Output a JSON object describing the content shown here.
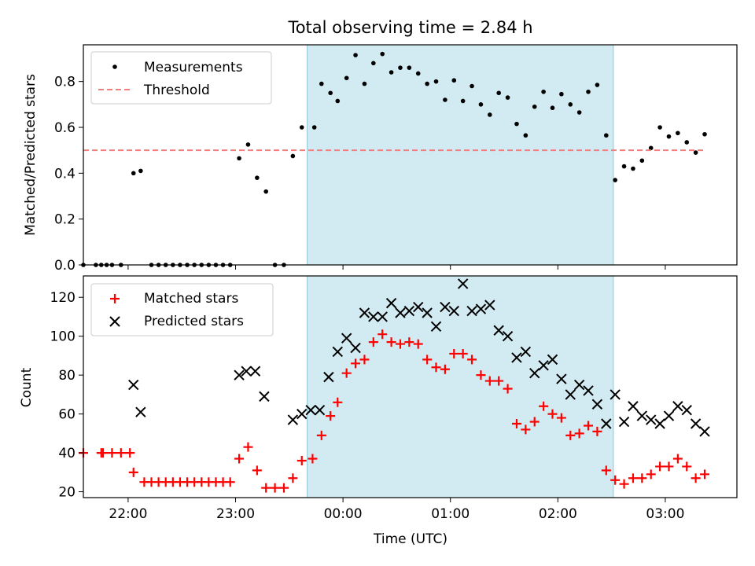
{
  "chart_data": [
    {
      "type": "scatter",
      "title": "Total observing time = 2.84 h",
      "ylabel": "Matched/Predicted stars",
      "xlabel": "",
      "ylim": [
        0,
        0.96
      ],
      "yticks": [
        "0.0",
        "0.2",
        "0.4",
        "0.6",
        "0.8"
      ],
      "xlim": [
        "21:35",
        "03:40"
      ],
      "shaded_interval": [
        "23:40",
        "02:31"
      ],
      "shade_color": "#add8e6",
      "legend_position": "upper-left",
      "series": [
        {
          "name": "Measurements",
          "marker": "dot",
          "color": "#000000",
          "points": [
            [
              "21:35",
              0.0
            ],
            [
              "21:42",
              0.0
            ],
            [
              "21:45",
              0.0
            ],
            [
              "21:48",
              0.0
            ],
            [
              "21:51",
              0.0
            ],
            [
              "21:56",
              0.0
            ],
            [
              "22:03",
              0.4
            ],
            [
              "22:07",
              0.41
            ],
            [
              "22:13",
              0.0
            ],
            [
              "22:17",
              0.0
            ],
            [
              "22:21",
              0.0
            ],
            [
              "22:25",
              0.0
            ],
            [
              "22:29",
              0.0
            ],
            [
              "22:33",
              0.0
            ],
            [
              "22:37",
              0.0
            ],
            [
              "22:41",
              0.0
            ],
            [
              "22:45",
              0.0
            ],
            [
              "22:49",
              0.0
            ],
            [
              "22:53",
              0.0
            ],
            [
              "22:57",
              0.0
            ],
            [
              "23:02",
              0.465
            ],
            [
              "23:07",
              0.525
            ],
            [
              "23:12",
              0.38
            ],
            [
              "23:17",
              0.32
            ],
            [
              "23:22",
              0.0
            ],
            [
              "23:27",
              0.0
            ],
            [
              "23:32",
              0.475
            ],
            [
              "23:37",
              0.6
            ],
            [
              "23:44",
              0.6
            ],
            [
              "23:48",
              0.79
            ],
            [
              "23:53",
              0.75
            ],
            [
              "23:57",
              0.715
            ],
            [
              "00:02",
              0.815
            ],
            [
              "00:07",
              0.915
            ],
            [
              "00:12",
              0.79
            ],
            [
              "00:17",
              0.88
            ],
            [
              "00:22",
              0.92
            ],
            [
              "00:27",
              0.84
            ],
            [
              "00:32",
              0.86
            ],
            [
              "00:37",
              0.86
            ],
            [
              "00:42",
              0.835
            ],
            [
              "00:47",
              0.79
            ],
            [
              "00:52",
              0.8
            ],
            [
              "00:57",
              0.72
            ],
            [
              "01:02",
              0.805
            ],
            [
              "01:07",
              0.715
            ],
            [
              "01:12",
              0.78
            ],
            [
              "01:17",
              0.7
            ],
            [
              "01:22",
              0.655
            ],
            [
              "01:27",
              0.75
            ],
            [
              "01:32",
              0.73
            ],
            [
              "01:37",
              0.615
            ],
            [
              "01:42",
              0.565
            ],
            [
              "01:47",
              0.69
            ],
            [
              "01:52",
              0.755
            ],
            [
              "01:57",
              0.685
            ],
            [
              "02:02",
              0.745
            ],
            [
              "02:07",
              0.7
            ],
            [
              "02:12",
              0.665
            ],
            [
              "02:17",
              0.755
            ],
            [
              "02:22",
              0.785
            ],
            [
              "02:27",
              0.565
            ],
            [
              "02:32",
              0.37
            ],
            [
              "02:37",
              0.43
            ],
            [
              "02:42",
              0.42
            ],
            [
              "02:47",
              0.455
            ],
            [
              "02:52",
              0.51
            ],
            [
              "02:57",
              0.6
            ],
            [
              "03:02",
              0.56
            ],
            [
              "03:07",
              0.575
            ],
            [
              "03:12",
              0.535
            ],
            [
              "03:17",
              0.49
            ],
            [
              "03:22",
              0.57
            ]
          ]
        },
        {
          "name": "Threshold",
          "marker": "dashed-line",
          "color": "#f08080",
          "points": [
            [
              "21:35",
              0.5
            ],
            [
              "03:22",
              0.5
            ]
          ]
        }
      ]
    },
    {
      "type": "scatter",
      "title": "",
      "ylabel": "Count",
      "xlabel": "Time (UTC)",
      "ylim": [
        17,
        131
      ],
      "yticks": [
        "20",
        "40",
        "60",
        "80",
        "100",
        "120"
      ],
      "xlim": [
        "21:35",
        "03:40"
      ],
      "xticks": [
        "22:00",
        "23:00",
        "00:00",
        "01:00",
        "02:00",
        "03:00"
      ],
      "shaded_interval": [
        "23:40",
        "02:31"
      ],
      "shade_color": "#add8e6",
      "legend_position": "upper-left",
      "series": [
        {
          "name": "Matched stars",
          "marker": "plus",
          "color": "#ff0000",
          "points": [
            [
              "21:35",
              40
            ],
            [
              "21:45",
              40
            ],
            [
              "21:46",
              40
            ],
            [
              "21:51",
              40
            ],
            [
              "21:56",
              40
            ],
            [
              "22:01",
              40
            ],
            [
              "22:03",
              30
            ],
            [
              "22:09",
              25
            ],
            [
              "22:13",
              25
            ],
            [
              "22:17",
              25
            ],
            [
              "22:21",
              25
            ],
            [
              "22:25",
              25
            ],
            [
              "22:29",
              25
            ],
            [
              "22:33",
              25
            ],
            [
              "22:37",
              25
            ],
            [
              "22:41",
              25
            ],
            [
              "22:45",
              25
            ],
            [
              "22:49",
              25
            ],
            [
              "22:53",
              25
            ],
            [
              "22:57",
              25
            ],
            [
              "23:02",
              37
            ],
            [
              "23:07",
              43
            ],
            [
              "23:12",
              31
            ],
            [
              "23:17",
              22
            ],
            [
              "23:22",
              22
            ],
            [
              "23:27",
              22
            ],
            [
              "23:32",
              27
            ],
            [
              "23:37",
              36
            ],
            [
              "23:43",
              37
            ],
            [
              "23:48",
              49
            ],
            [
              "23:53",
              59
            ],
            [
              "23:57",
              66
            ],
            [
              "00:02",
              81
            ],
            [
              "00:07",
              86
            ],
            [
              "00:12",
              88
            ],
            [
              "00:17",
              97
            ],
            [
              "00:22",
              101
            ],
            [
              "00:27",
              97
            ],
            [
              "00:32",
              96
            ],
            [
              "00:37",
              97
            ],
            [
              "00:42",
              96
            ],
            [
              "00:47",
              88
            ],
            [
              "00:52",
              84
            ],
            [
              "00:57",
              83
            ],
            [
              "01:02",
              91
            ],
            [
              "01:07",
              91
            ],
            [
              "01:12",
              88
            ],
            [
              "01:17",
              80
            ],
            [
              "01:22",
              77
            ],
            [
              "01:27",
              77
            ],
            [
              "01:32",
              73
            ],
            [
              "01:37",
              55
            ],
            [
              "01:42",
              52
            ],
            [
              "01:47",
              56
            ],
            [
              "01:52",
              64
            ],
            [
              "01:57",
              60
            ],
            [
              "02:02",
              58
            ],
            [
              "02:07",
              49
            ],
            [
              "02:12",
              50
            ],
            [
              "02:17",
              54
            ],
            [
              "02:22",
              51
            ],
            [
              "02:27",
              31
            ],
            [
              "02:32",
              26
            ],
            [
              "02:37",
              24
            ],
            [
              "02:42",
              27
            ],
            [
              "02:47",
              27
            ],
            [
              "02:52",
              29
            ],
            [
              "02:57",
              33
            ],
            [
              "03:02",
              33
            ],
            [
              "03:07",
              37
            ],
            [
              "03:12",
              33
            ],
            [
              "03:17",
              27
            ],
            [
              "03:22",
              29
            ]
          ]
        },
        {
          "name": "Predicted stars",
          "marker": "x",
          "color": "#000000",
          "points": [
            [
              "22:03",
              75
            ],
            [
              "22:07",
              61
            ],
            [
              "23:02",
              80
            ],
            [
              "23:06",
              82
            ],
            [
              "23:11",
              82
            ],
            [
              "23:16",
              69
            ],
            [
              "23:32",
              57
            ],
            [
              "23:37",
              60
            ],
            [
              "23:42",
              62
            ],
            [
              "23:47",
              62
            ],
            [
              "23:52",
              79
            ],
            [
              "23:57",
              92
            ],
            [
              "00:02",
              99
            ],
            [
              "00:07",
              94
            ],
            [
              "00:12",
              112
            ],
            [
              "00:17",
              110
            ],
            [
              "00:22",
              110
            ],
            [
              "00:27",
              117
            ],
            [
              "00:32",
              112
            ],
            [
              "00:37",
              113
            ],
            [
              "00:42",
              115
            ],
            [
              "00:47",
              112
            ],
            [
              "00:52",
              105
            ],
            [
              "00:57",
              115
            ],
            [
              "01:02",
              113
            ],
            [
              "01:07",
              127
            ],
            [
              "01:12",
              113
            ],
            [
              "01:17",
              114
            ],
            [
              "01:22",
              116
            ],
            [
              "01:27",
              103
            ],
            [
              "01:32",
              100
            ],
            [
              "01:37",
              89
            ],
            [
              "01:42",
              92
            ],
            [
              "01:47",
              81
            ],
            [
              "01:52",
              85
            ],
            [
              "01:57",
              88
            ],
            [
              "02:02",
              78
            ],
            [
              "02:07",
              70
            ],
            [
              "02:12",
              75
            ],
            [
              "02:17",
              72
            ],
            [
              "02:22",
              65
            ],
            [
              "02:27",
              55
            ],
            [
              "02:32",
              70
            ],
            [
              "02:37",
              56
            ],
            [
              "02:42",
              64
            ],
            [
              "02:47",
              59
            ],
            [
              "02:52",
              57
            ],
            [
              "02:57",
              55
            ],
            [
              "03:02",
              59
            ],
            [
              "03:07",
              64
            ],
            [
              "03:12",
              62
            ],
            [
              "03:17",
              55
            ],
            [
              "03:22",
              51
            ]
          ]
        }
      ]
    }
  ]
}
